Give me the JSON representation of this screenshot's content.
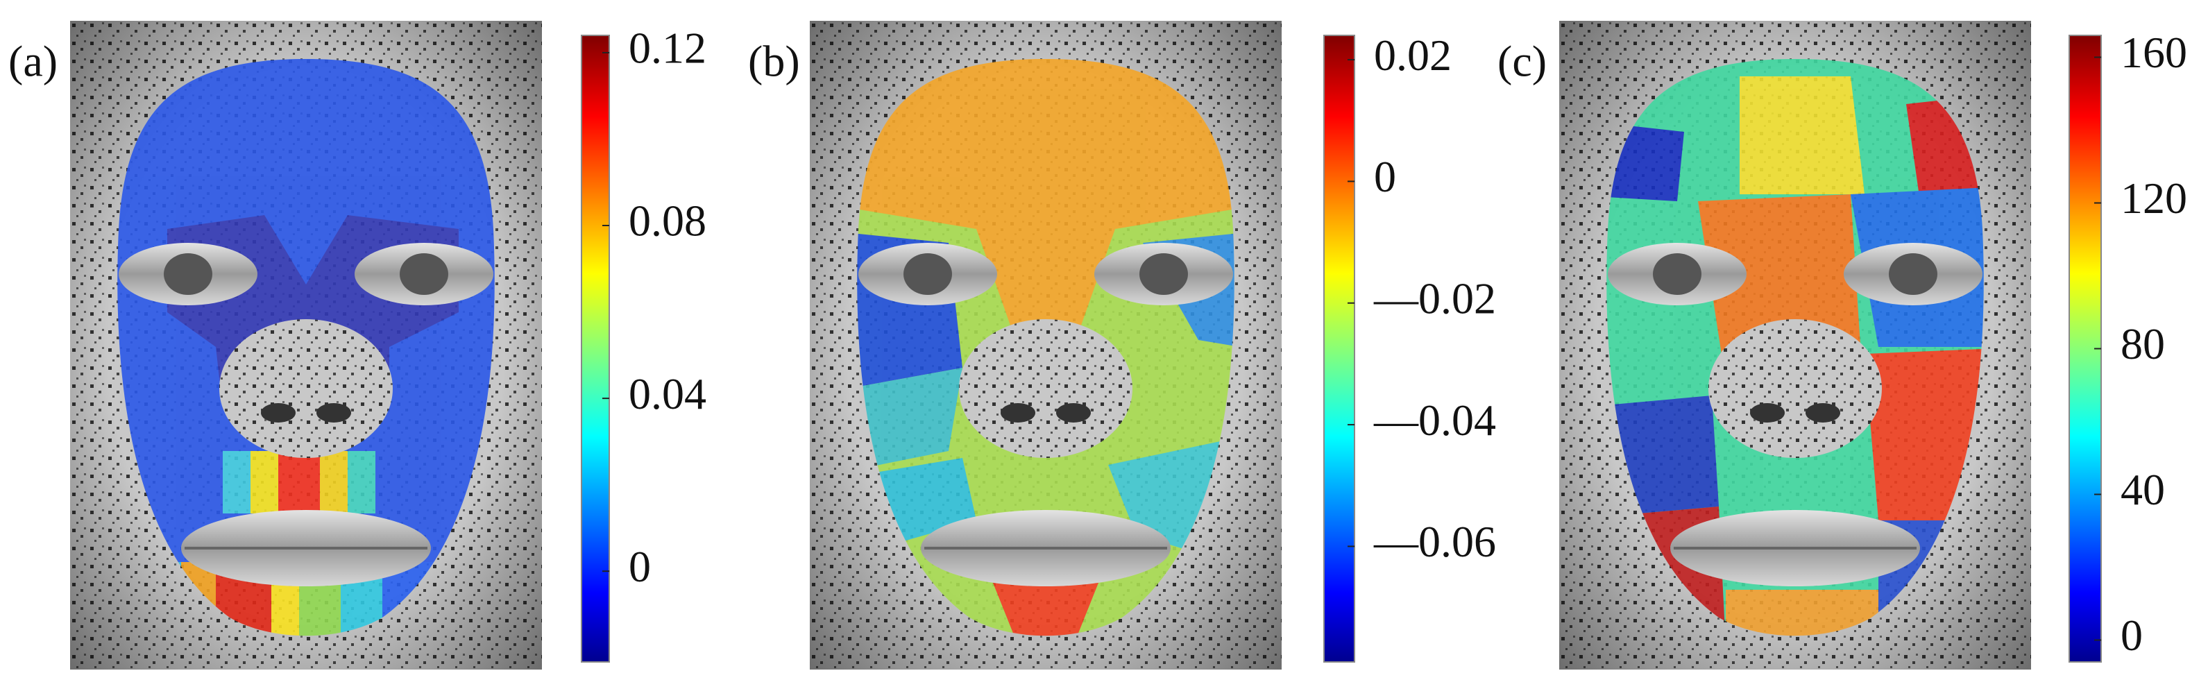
{
  "panels": [
    {
      "label": "(a)",
      "colorbar": {
        "lim": [
          -0.021,
          0.124
        ],
        "ticks": [
          0,
          0.04,
          0.08,
          0.12
        ]
      }
    },
    {
      "label": "(b)",
      "colorbar": {
        "lim": [
          -0.079,
          0.024
        ],
        "ticks": [
          {
            "value": -0.06,
            "label": "—0.06"
          },
          {
            "value": -0.04,
            "label": "—0.04"
          },
          {
            "value": -0.02,
            "label": "—0.02"
          },
          0,
          0.02
        ]
      }
    },
    {
      "label": "(c)",
      "colorbar": {
        "lim": [
          -6,
          166
        ],
        "ticks": [
          0,
          40,
          80,
          120,
          160
        ]
      }
    }
  ]
}
